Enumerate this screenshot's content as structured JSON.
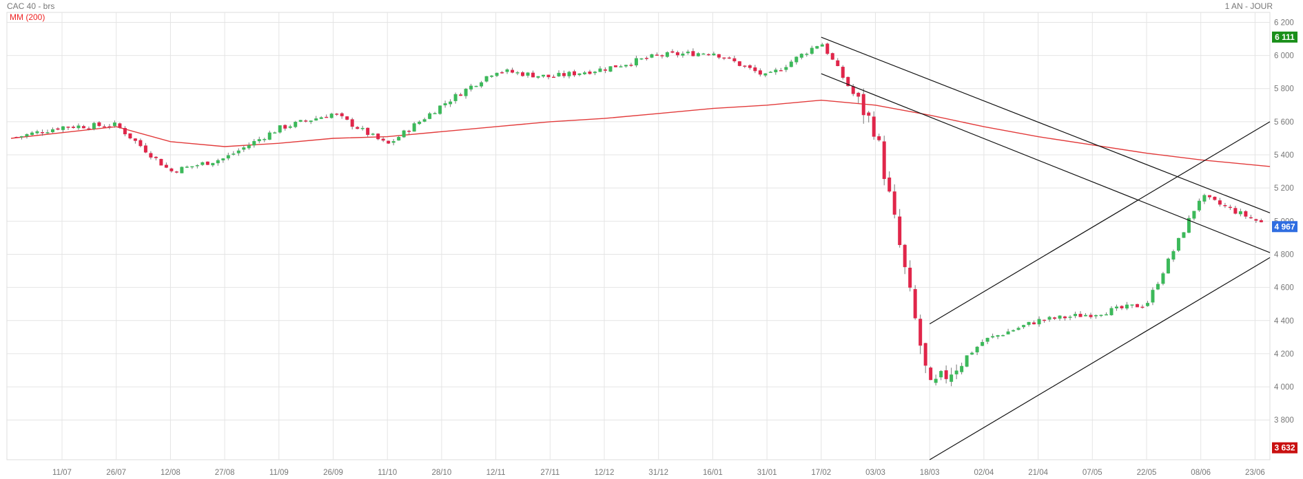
{
  "header": {
    "title": "CAC 40 - brs",
    "period": "1 AN - JOUR",
    "indicator": "MM (200)"
  },
  "chart_data": {
    "type": "candlestick",
    "ylim": [
      3560,
      6260
    ],
    "y_ticks": [
      "6 200",
      "6 000",
      "5 800",
      "5 600",
      "5 400",
      "5 200",
      "5 000",
      "4 800",
      "4 600",
      "4 400",
      "4 200",
      "4 000",
      "3 800"
    ],
    "x_ticks": [
      "11/07",
      "26/07",
      "12/08",
      "27/08",
      "11/09",
      "26/09",
      "11/10",
      "28/10",
      "12/11",
      "27/11",
      "12/12",
      "31/12",
      "16/01",
      "31/01",
      "17/02",
      "03/03",
      "18/03",
      "02/04",
      "21/04",
      "07/05",
      "22/05",
      "08/06",
      "23/06"
    ],
    "badges": [
      {
        "label": "6 111",
        "value": 6111,
        "color": "#1a8f1a"
      },
      {
        "label": "4 967",
        "value": 4967,
        "color": "#2f6de1"
      },
      {
        "label": "3 632",
        "value": 3632,
        "color": "#c91010"
      }
    ],
    "colors": {
      "up": "#3cb95a",
      "down": "#e0264a",
      "ma": "#e23a3a",
      "trend": "#111111"
    },
    "trendlines": [
      {
        "from": [
          "17/02",
          6110
        ],
        "to": [
          "end",
          5050
        ]
      },
      {
        "from": [
          "17/02",
          5890
        ],
        "to": [
          "end",
          4810
        ]
      },
      {
        "from": [
          "18/03",
          3560
        ],
        "to": [
          "end",
          4780
        ]
      },
      {
        "from": [
          "18/03",
          4380
        ],
        "to": [
          "end",
          5600
        ]
      }
    ],
    "series": [
      {
        "name": "MM (200)",
        "points": [
          [
            "start",
            5500
          ],
          [
            "26/07",
            5570
          ],
          [
            "12/08",
            5480
          ],
          [
            "27/08",
            5450
          ],
          [
            "11/09",
            5470
          ],
          [
            "26/09",
            5500
          ],
          [
            "11/10",
            5510
          ],
          [
            "28/10",
            5540
          ],
          [
            "12/11",
            5570
          ],
          [
            "27/11",
            5600
          ],
          [
            "12/12",
            5620
          ],
          [
            "31/12",
            5650
          ],
          [
            "16/01",
            5680
          ],
          [
            "31/01",
            5700
          ],
          [
            "17/02",
            5730
          ],
          [
            "03/03",
            5700
          ],
          [
            "18/03",
            5640
          ],
          [
            "02/04",
            5570
          ],
          [
            "21/04",
            5510
          ],
          [
            "07/05",
            5460
          ],
          [
            "22/05",
            5410
          ],
          [
            "08/06",
            5370
          ],
          [
            "end",
            5330
          ]
        ]
      },
      {
        "name": "price",
        "waypoints": [
          [
            "start",
            5500
          ],
          [
            "11/07",
            5570
          ],
          [
            "26/07",
            5580
          ],
          [
            "12/08",
            5300
          ],
          [
            "27/08",
            5380
          ],
          [
            "11/09",
            5560
          ],
          [
            "26/09",
            5650
          ],
          [
            "11/10",
            5460
          ],
          [
            "28/10",
            5700
          ],
          [
            "12/11",
            5910
          ],
          [
            "27/11",
            5870
          ],
          [
            "12/12",
            5920
          ],
          [
            "31/12",
            6000
          ],
          [
            "16/01",
            6020
          ],
          [
            "31/01",
            5870
          ],
          [
            "17/02",
            6080
          ],
          [
            "03/03",
            5550
          ],
          [
            "18/03",
            3980
          ],
          [
            "02/04",
            4280
          ],
          [
            "21/04",
            4400
          ],
          [
            "07/05",
            4440
          ],
          [
            "22/05",
            4500
          ],
          [
            "08/06",
            5150
          ],
          [
            "end",
            4967
          ]
        ]
      }
    ]
  }
}
